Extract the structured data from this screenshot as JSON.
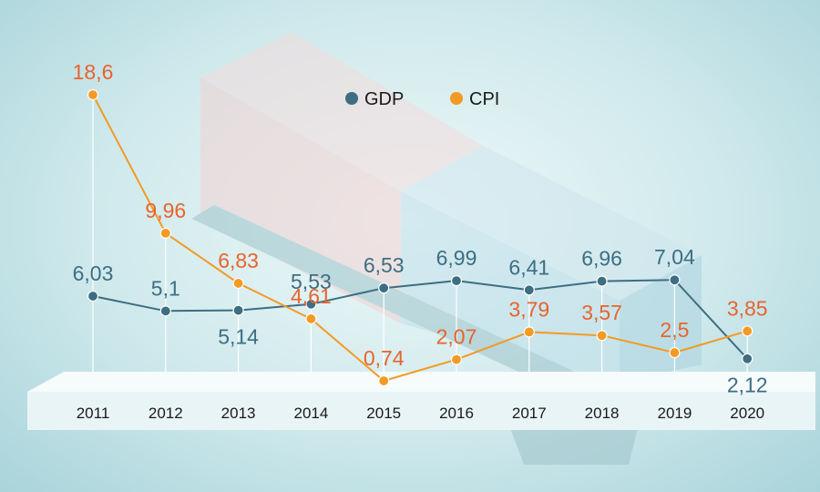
{
  "colors": {
    "gdp": "#3d6e82",
    "cpi": "#f39a24",
    "cpi_label": "#e8642c",
    "platform": "#e9f4f6"
  },
  "chart_data": {
    "type": "line",
    "title": "",
    "xlabel": "",
    "ylabel": "",
    "ylim": [
      0,
      19
    ],
    "grid": false,
    "legend_position": "top-center",
    "categories": [
      "2011",
      "2012",
      "2013",
      "2014",
      "2015",
      "2016",
      "2017",
      "2018",
      "2019",
      "2020"
    ],
    "series": [
      {
        "name": "GDP",
        "values": [
          6.03,
          5.1,
          5.14,
          5.53,
          6.53,
          6.99,
          6.41,
          6.96,
          7.04,
          2.12
        ],
        "labels": [
          "6,03",
          "5,1",
          "5,14",
          "5,53",
          "6,53",
          "6,99",
          "6,41",
          "6,96",
          "7,04",
          "2,12"
        ],
        "label_side": [
          "above",
          "above",
          "below",
          "above",
          "above",
          "above",
          "above",
          "above",
          "above",
          "below"
        ]
      },
      {
        "name": "CPI",
        "values": [
          18.6,
          9.96,
          6.83,
          4.61,
          0.74,
          2.07,
          3.79,
          3.57,
          2.5,
          3.85
        ],
        "labels": [
          "18,6",
          "9,96",
          "6,83",
          "4,61",
          "0,74",
          "2,07",
          "3,79",
          "3,57",
          "2,5",
          "3,85"
        ],
        "label_side": [
          "above",
          "above",
          "above",
          "above",
          "above",
          "above",
          "above",
          "above",
          "above",
          "above"
        ]
      }
    ]
  }
}
